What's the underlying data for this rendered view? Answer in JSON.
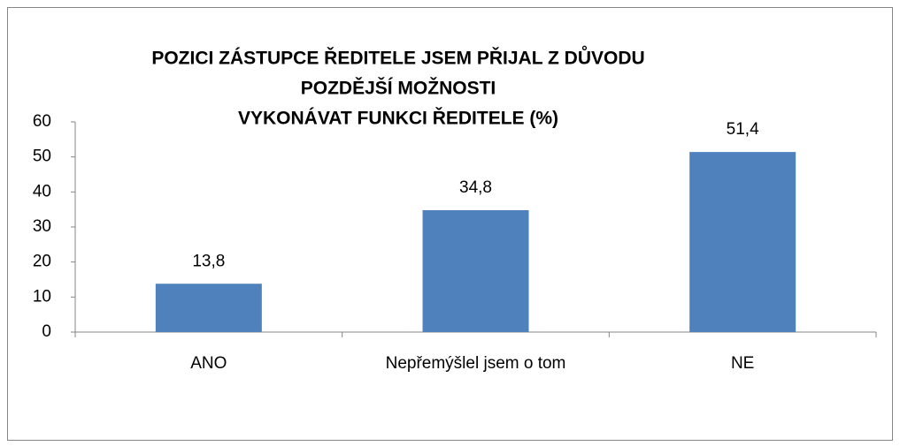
{
  "chart_data": {
    "type": "bar",
    "title": [
      "POZICI ZÁSTUPCE ŘEDITELE JSEM PŘIJAL Z DŮVODU",
      "POZDĚJŠÍ MOŽNOSTI",
      "VYKONÁVAT FUNKCI ŘEDITELE (%)"
    ],
    "categories": [
      "ANO",
      "Nepřemýšlel jsem o tom",
      "NE"
    ],
    "values": [
      13.8,
      34.8,
      51.4
    ],
    "value_labels": [
      "13,8",
      "34,8",
      "51,4"
    ],
    "color": "#4f81bd",
    "ylim": [
      0,
      60
    ],
    "yticks": [
      0,
      10,
      20,
      30,
      40,
      50,
      60
    ],
    "grid": false
  }
}
